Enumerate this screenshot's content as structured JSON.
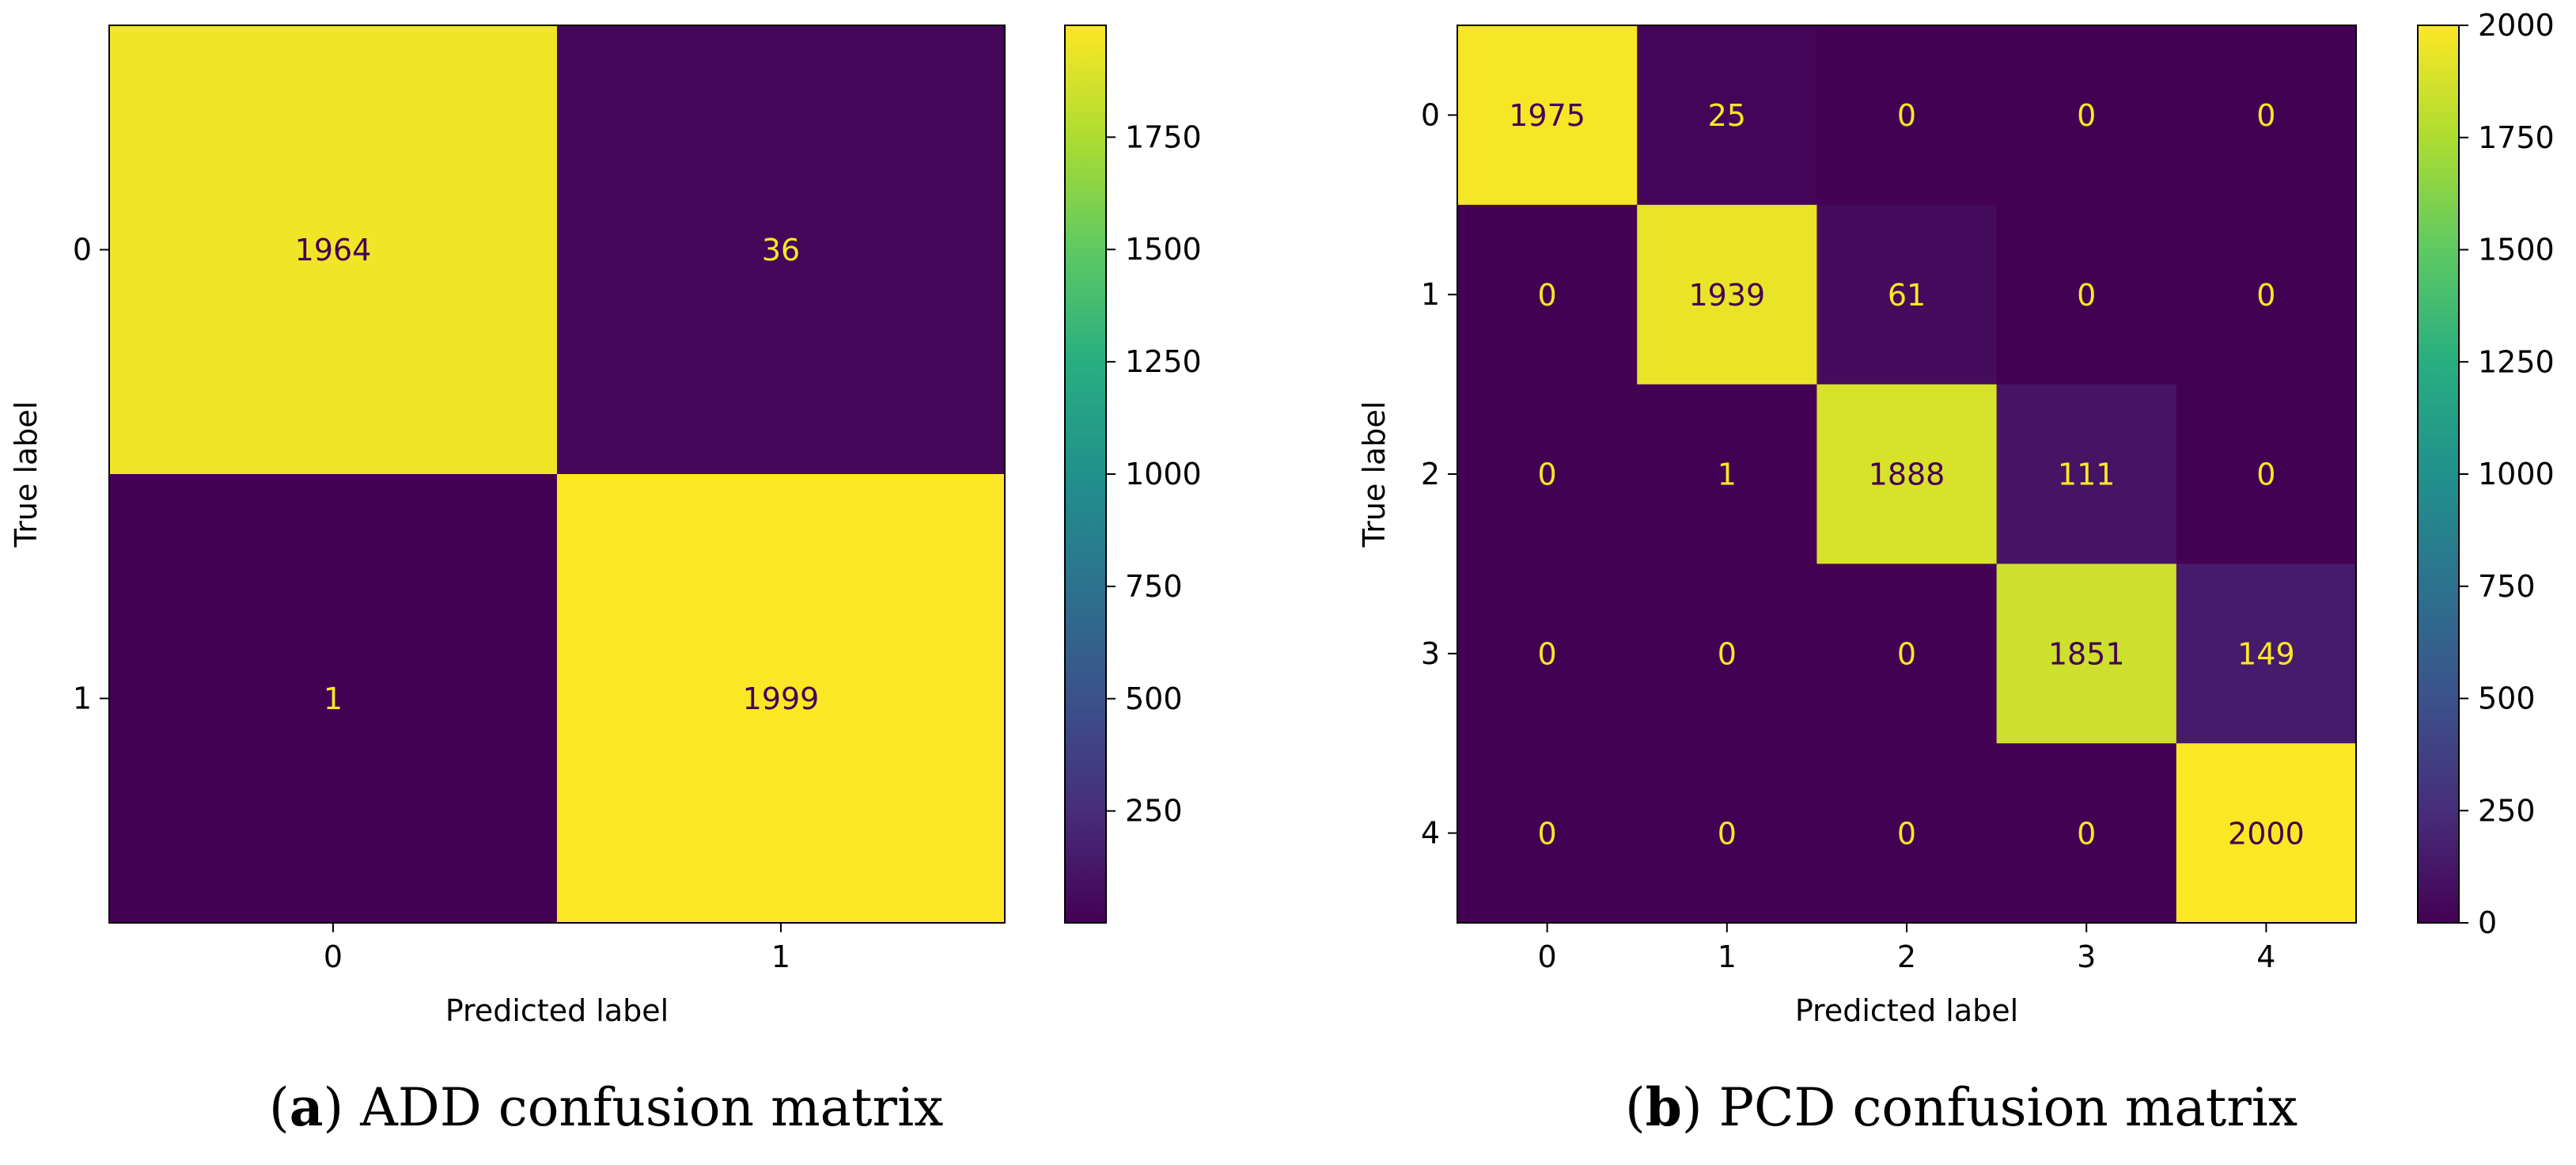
{
  "chart_data": [
    {
      "type": "heatmap",
      "title": "",
      "xlabel": "Predicted label",
      "ylabel": "True label",
      "x_tick_labels": [
        "0",
        "1"
      ],
      "y_tick_labels": [
        "0",
        "1"
      ],
      "matrix": [
        [
          1964,
          36
        ],
        [
          1,
          1999
        ]
      ],
      "colorbar": {
        "min": 1,
        "max": 1999,
        "ticks": [
          250,
          500,
          750,
          1000,
          1250,
          1500,
          1750
        ]
      },
      "colormap": "viridis",
      "caption": {
        "letter": "a",
        "text": "ADD confusion matrix"
      }
    },
    {
      "type": "heatmap",
      "title": "",
      "xlabel": "Predicted label",
      "ylabel": "True label",
      "x_tick_labels": [
        "0",
        "1",
        "2",
        "3",
        "4"
      ],
      "y_tick_labels": [
        "0",
        "1",
        "2",
        "3",
        "4"
      ],
      "matrix": [
        [
          1975,
          25,
          0,
          0,
          0
        ],
        [
          0,
          1939,
          61,
          0,
          0
        ],
        [
          0,
          1,
          1888,
          111,
          0
        ],
        [
          0,
          0,
          0,
          1851,
          149
        ],
        [
          0,
          0,
          0,
          0,
          2000
        ]
      ],
      "colorbar": {
        "min": 0,
        "max": 2000,
        "ticks": [
          0,
          250,
          500,
          750,
          1000,
          1250,
          1500,
          1750,
          2000
        ]
      },
      "colormap": "viridis",
      "caption": {
        "letter": "b",
        "text": "PCD confusion matrix"
      }
    }
  ],
  "colors": {
    "text_on_dark": "#fde725",
    "text_on_light": "#440154",
    "axis": "#000000"
  }
}
